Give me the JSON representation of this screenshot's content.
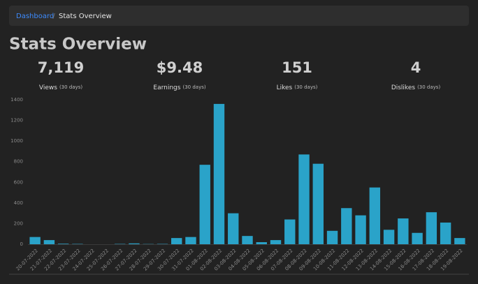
{
  "breadcrumb": {
    "items": [
      "Dashboard",
      "Stats Overview"
    ],
    "separator": "/"
  },
  "heading": "Stats Overview",
  "stats": [
    {
      "value": "7,119",
      "label": "Views",
      "period": "(30 days)"
    },
    {
      "value": "$9.48",
      "label": "Earnings",
      "period": "(30 days)"
    },
    {
      "value": "151",
      "label": "Likes",
      "period": "(30 days)"
    },
    {
      "value": "4",
      "label": "Dislikes",
      "period": "(30 days)"
    }
  ],
  "chart_data": {
    "type": "bar",
    "categories": [
      "20-07-2022",
      "21-07-2022",
      "22-07-2022",
      "23-07-2022",
      "24-07-2022",
      "25-07-2022",
      "26-07-2022",
      "27-07-2022",
      "28-07-2022",
      "29-07-2022",
      "30-07-2022",
      "31-07-2022",
      "01-08-2022",
      "02-08-2022",
      "03-08-2022",
      "04-08-2022",
      "05-08-2022",
      "06-08-2022",
      "07-08-2022",
      "08-08-2022",
      "09-08-2022",
      "10-08-2022",
      "11-08-2022",
      "12-08-2022",
      "13-08-2022",
      "14-08-2022",
      "15-08-2022",
      "16-08-2022",
      "17-08-2022",
      "18-08-2022",
      "19-08-2022"
    ],
    "values": [
      70,
      40,
      5,
      3,
      0,
      0,
      3,
      8,
      2,
      3,
      60,
      70,
      770,
      1360,
      300,
      80,
      20,
      40,
      240,
      870,
      780,
      130,
      350,
      280,
      550,
      140,
      250,
      110,
      310,
      210,
      60
    ],
    "color": "#2aa3c9",
    "ylim": [
      0,
      1400
    ],
    "yticks": [
      0,
      200,
      400,
      600,
      800,
      1000,
      1200,
      1400
    ],
    "grid": false
  }
}
